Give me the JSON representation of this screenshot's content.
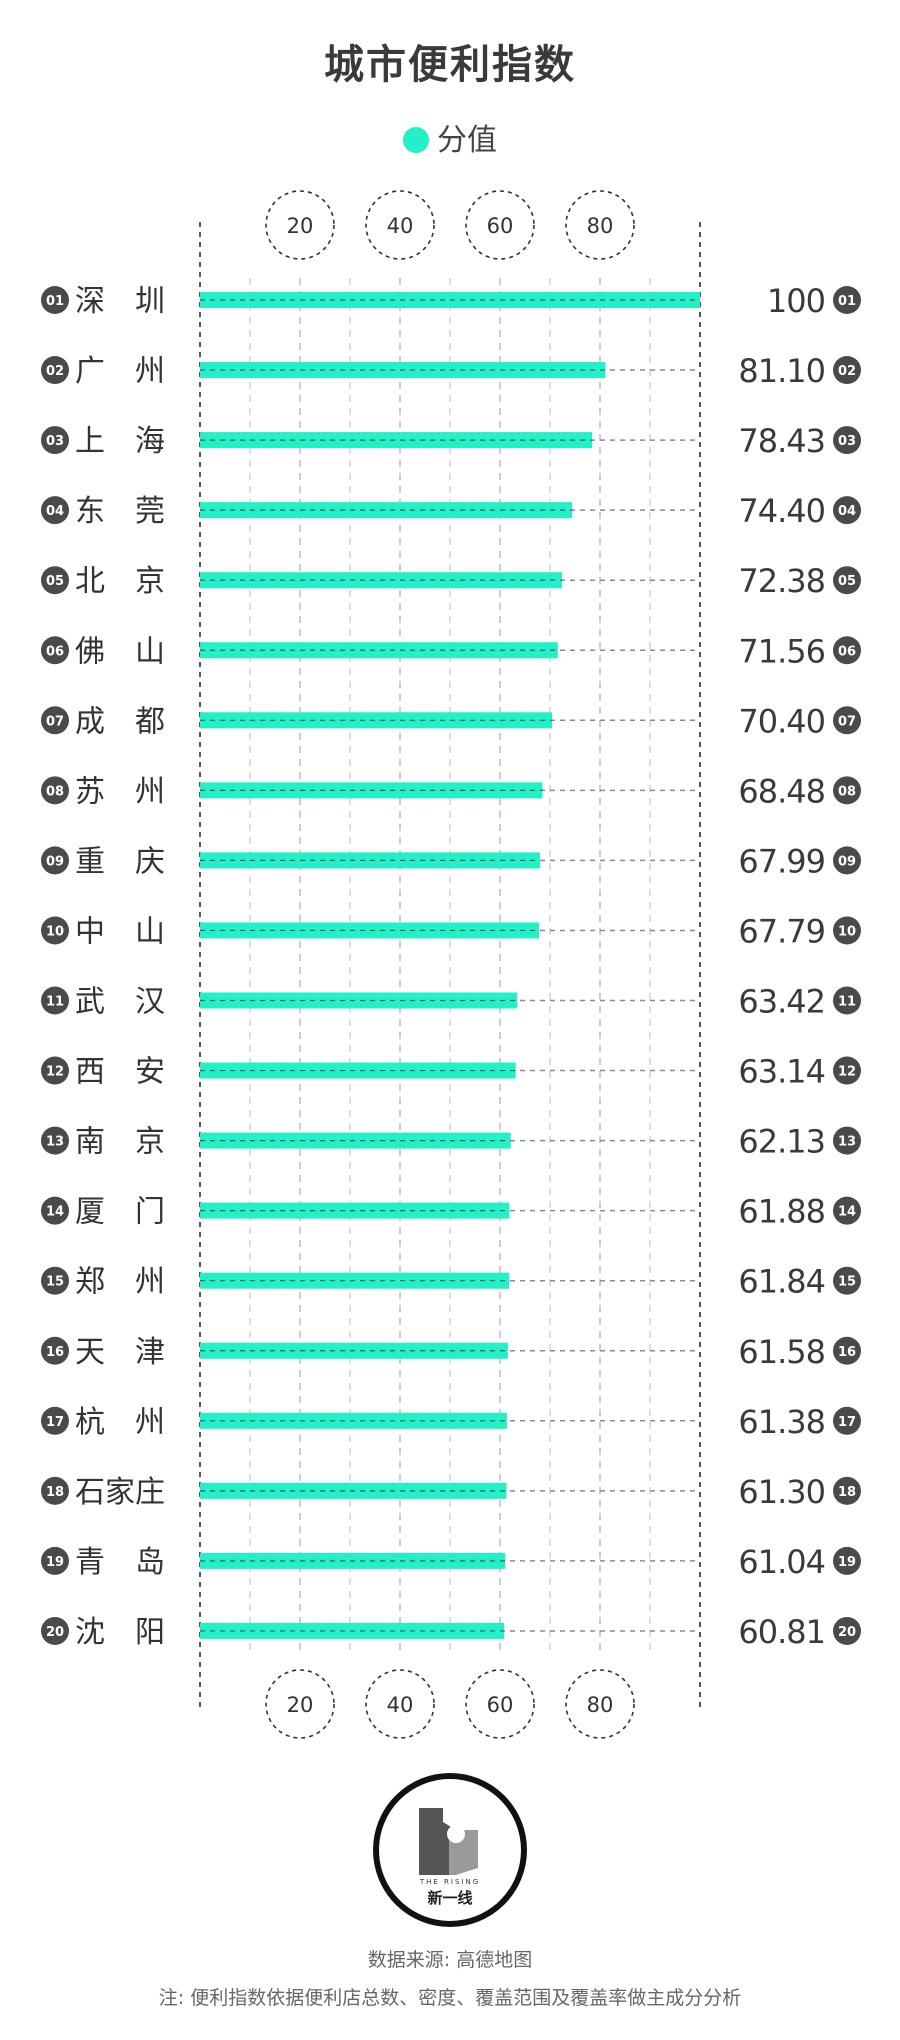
{
  "chart_data": {
    "type": "bar",
    "orientation": "horizontal",
    "title": "城市便利指数",
    "legend": "分值",
    "xlim": [
      0,
      100
    ],
    "xticks": [
      20,
      40,
      60,
      80
    ],
    "ranks": [
      "01",
      "02",
      "03",
      "04",
      "05",
      "06",
      "07",
      "08",
      "09",
      "10",
      "11",
      "12",
      "13",
      "14",
      "15",
      "16",
      "17",
      "18",
      "19",
      "20"
    ],
    "categories": [
      "深　圳",
      "广　州",
      "上　海",
      "东　莞",
      "北　京",
      "佛　山",
      "成　都",
      "苏　州",
      "重　庆",
      "中　山",
      "武　汉",
      "西　安",
      "南　京",
      "厦　门",
      "郑　州",
      "天　津",
      "杭　州",
      "石家庄",
      "青　岛",
      "沈　阳"
    ],
    "values": [
      100,
      81.1,
      78.43,
      74.4,
      72.38,
      71.56,
      70.4,
      68.48,
      67.99,
      67.79,
      63.42,
      63.14,
      62.13,
      61.88,
      61.84,
      61.58,
      61.38,
      61.3,
      61.04,
      60.81
    ],
    "value_labels": [
      "100",
      "81.10",
      "78.43",
      "74.40",
      "72.38",
      "71.56",
      "70.40",
      "68.48",
      "67.99",
      "67.79",
      "63.42",
      "63.14",
      "62.13",
      "61.88",
      "61.84",
      "61.58",
      "61.38",
      "61.30",
      "61.04",
      "60.81"
    ],
    "grid": true,
    "legend_position": "top-center",
    "bar_color": "#22f0c6"
  },
  "logo": {
    "tagline": "THE RISING",
    "name": "新一线"
  },
  "footer": {
    "source": "数据来源: 高德地图",
    "note": "注: 便利指数依据便利店总数、密度、覆盖范围及覆盖率做主成分分析"
  },
  "colors": {
    "bar": "#22f0c6",
    "badge": "#4a4a4a",
    "text": "#333333",
    "grid": "#888888"
  }
}
